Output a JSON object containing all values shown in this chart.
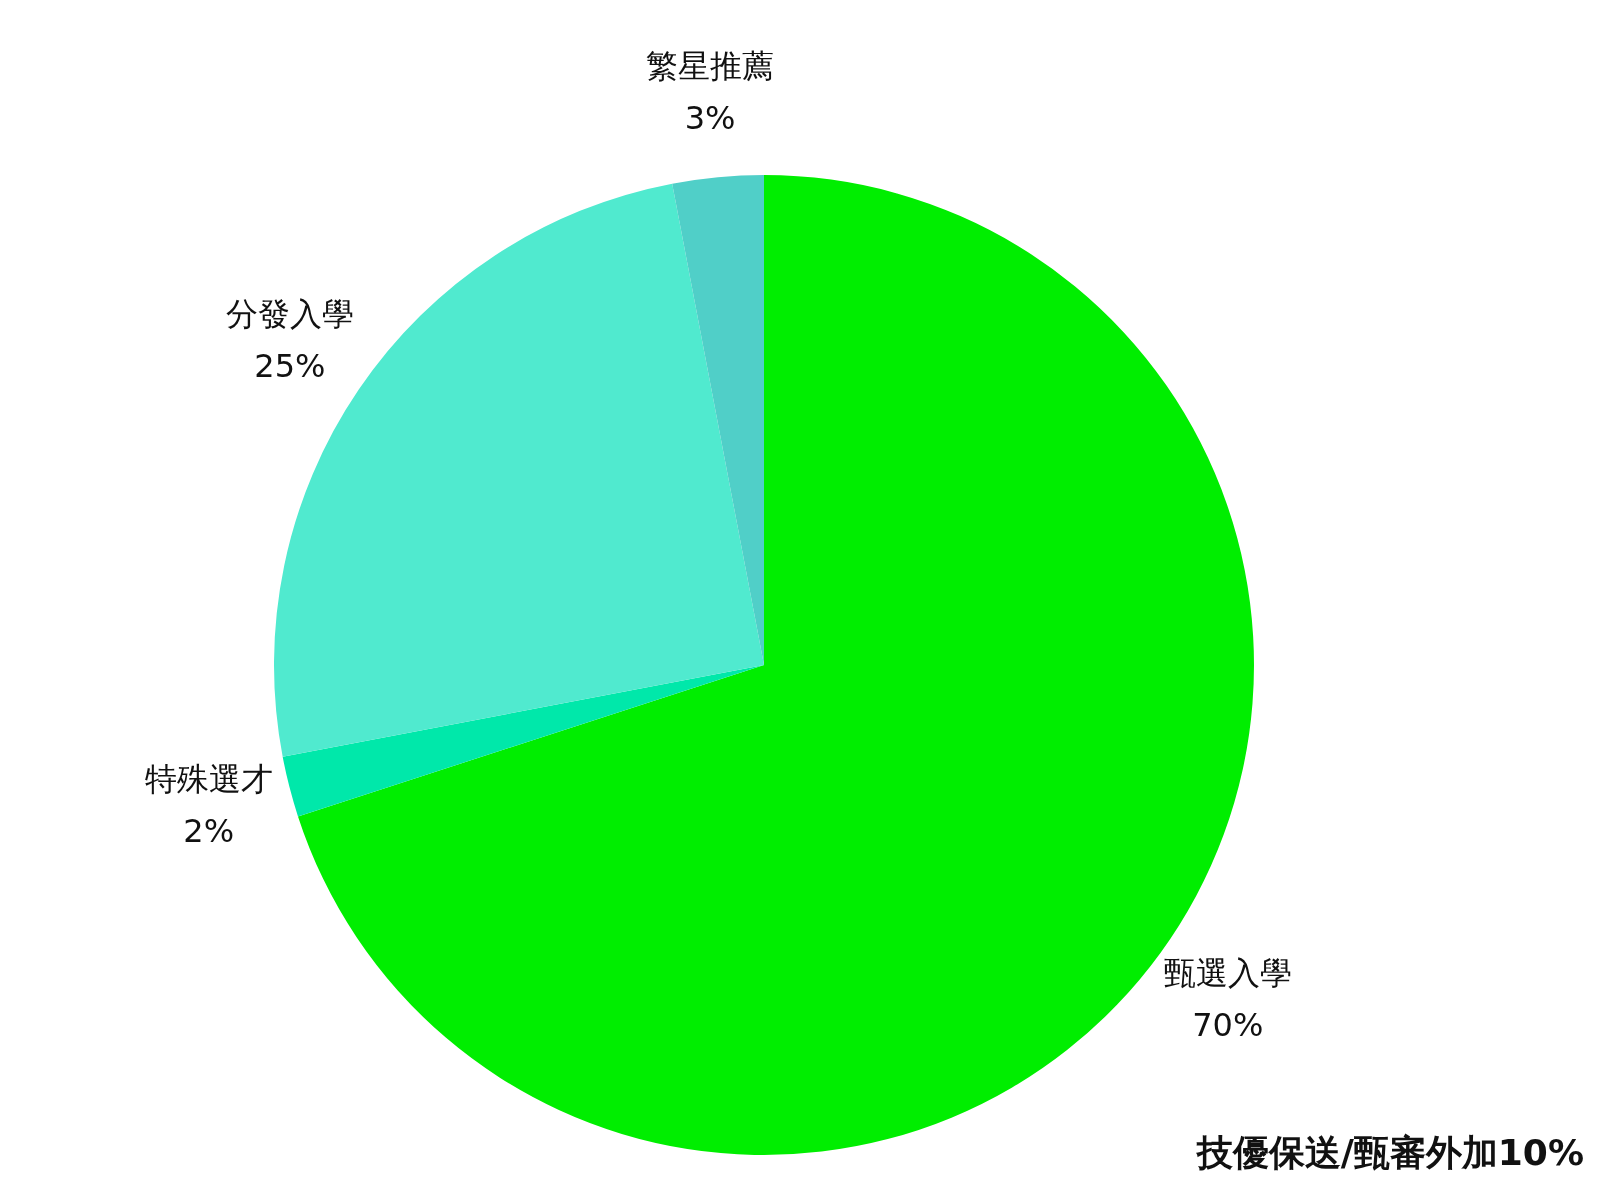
{
  "chart_data": {
    "type": "pie",
    "categories": [
      "甄選入學",
      "特殊選才",
      "分發入學",
      "繁星推薦"
    ],
    "values": [
      70,
      2,
      25,
      3
    ],
    "colors": [
      "#00ee00",
      "#00e8aa",
      "#50eacf",
      "#50cfc8"
    ],
    "value_labels": [
      "70%",
      "2%",
      "25%",
      "3%"
    ],
    "legend": false,
    "annotations": [
      "技優保送/甄審外加10%"
    ]
  }
}
